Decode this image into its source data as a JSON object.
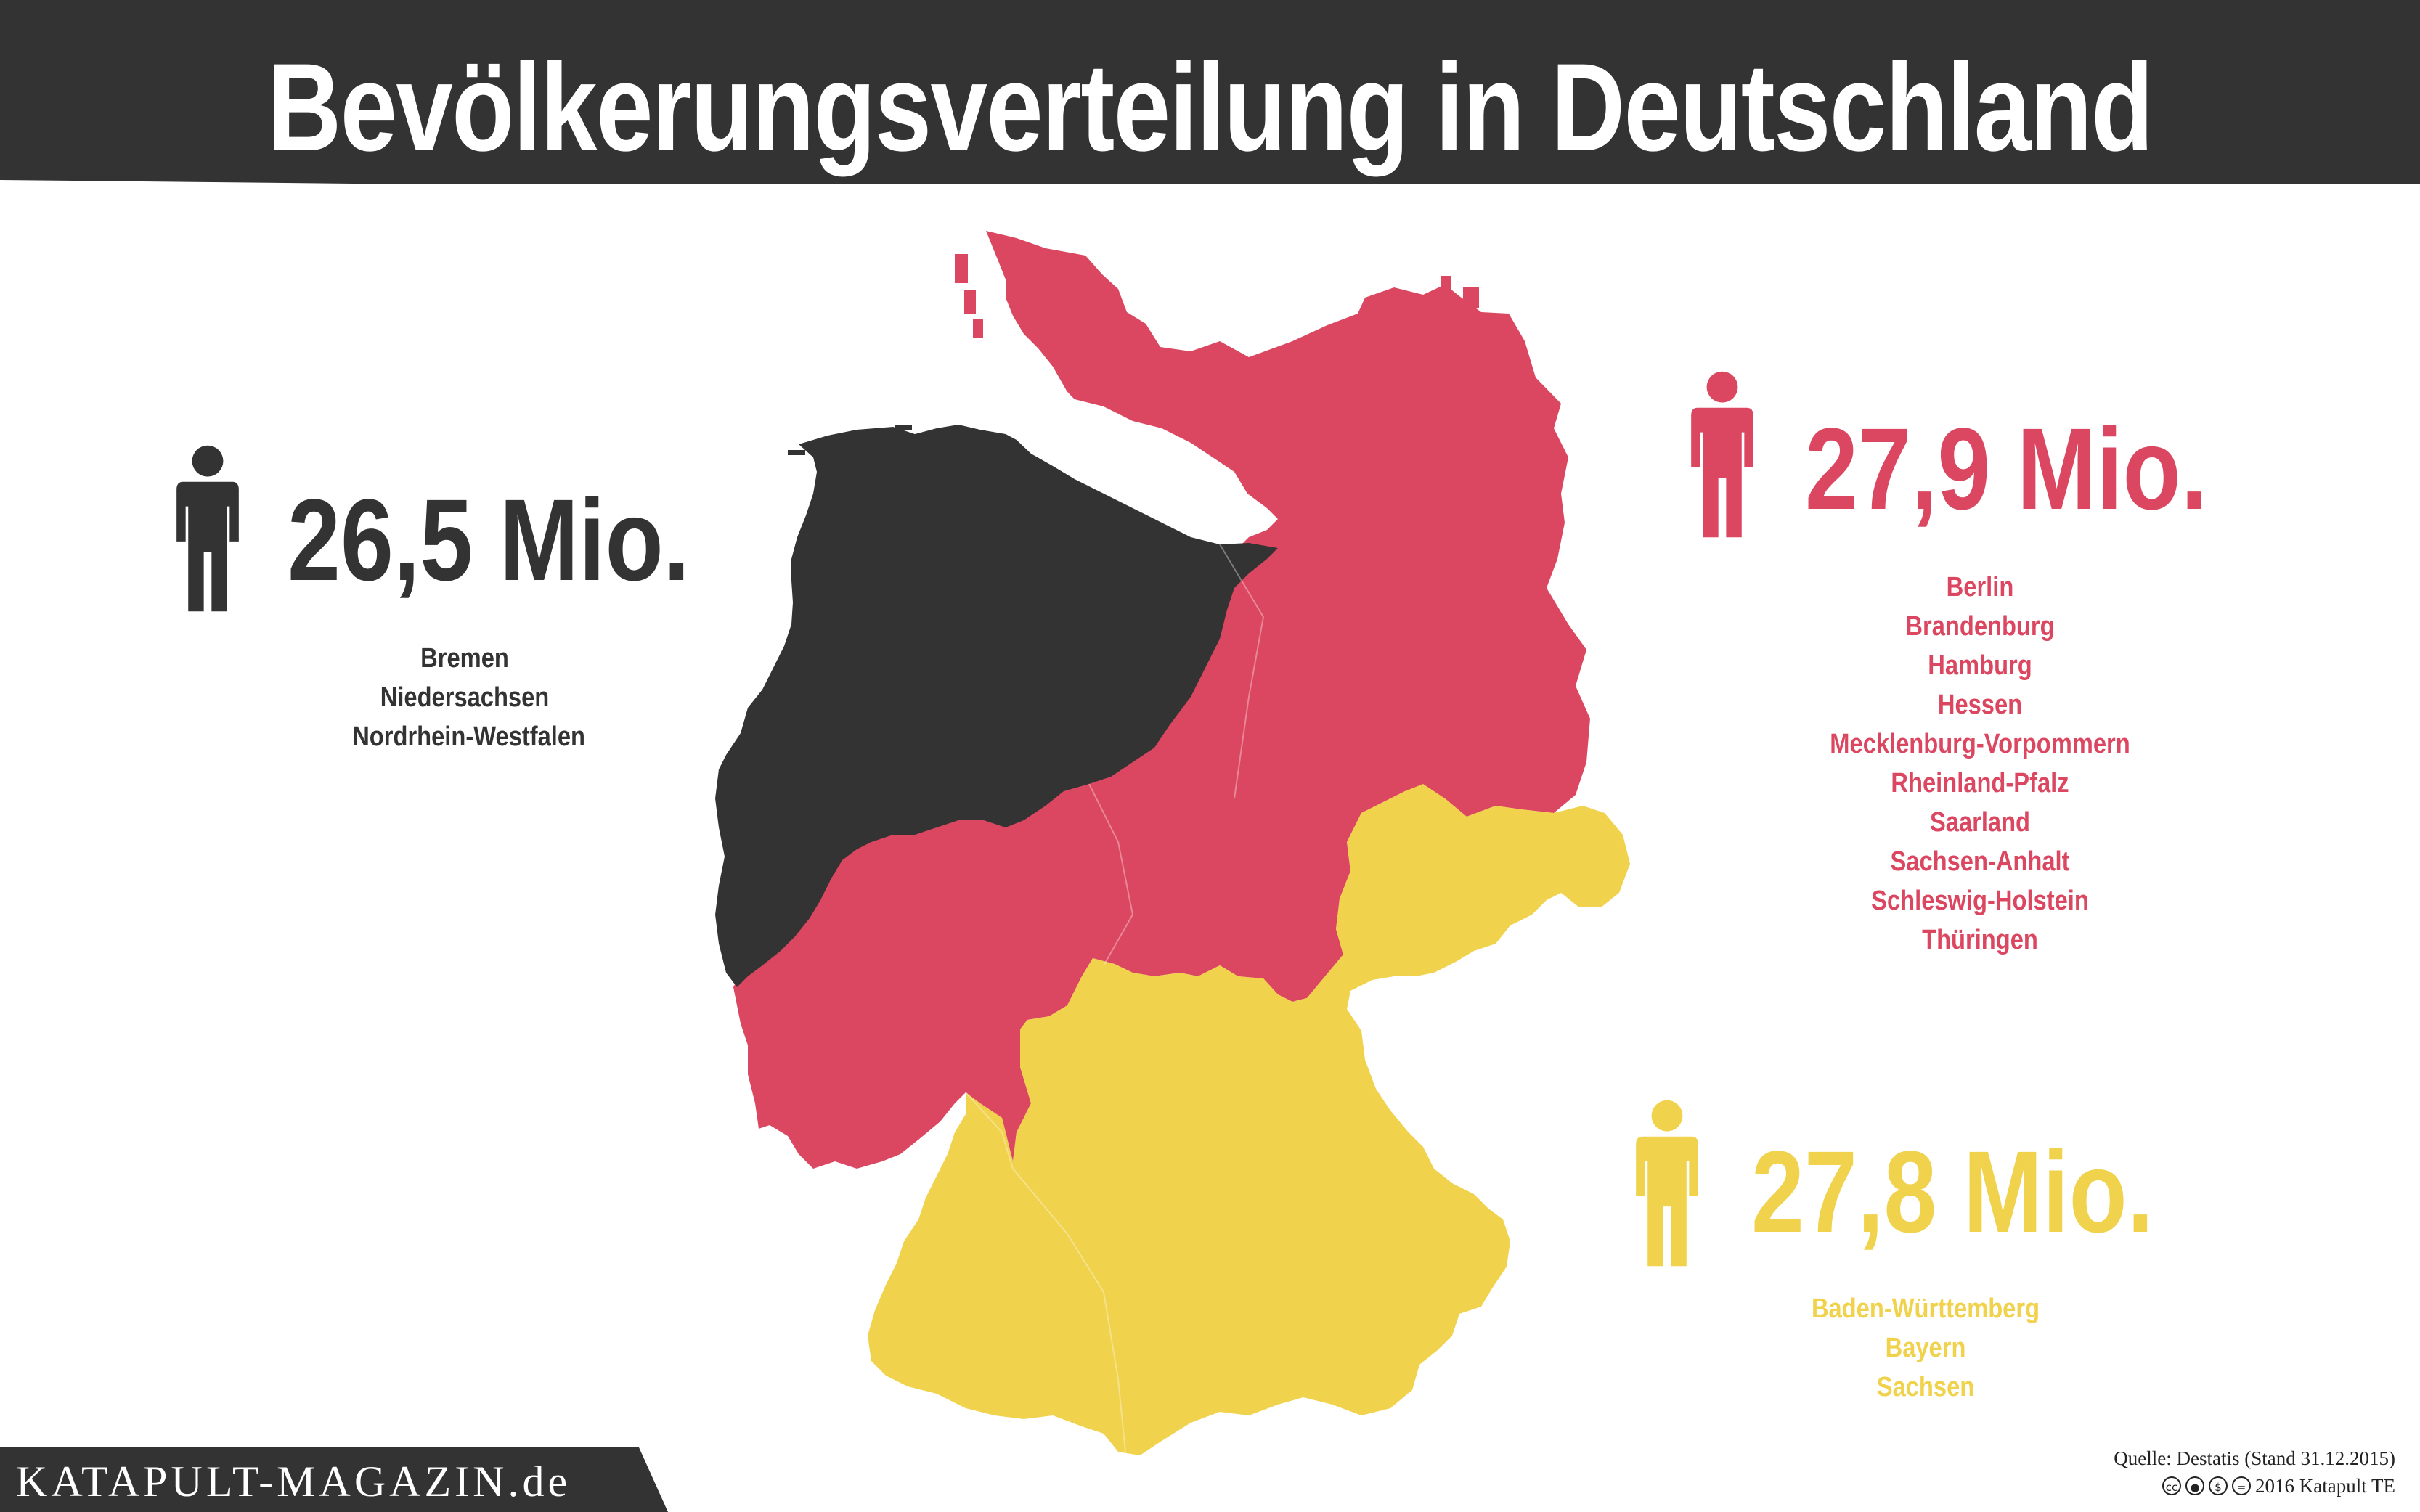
{
  "title": "Bevölkerungsverteilung in Deutschland",
  "colors": {
    "dark": "#333333",
    "red": "#db4760",
    "yellow": "#f0d24c",
    "white": "#ffffff"
  },
  "groups": [
    {
      "id": "west",
      "population": "26,5 Mio.",
      "color": "#333333",
      "states": [
        "Bremen",
        "Niedersachsen",
        "Nordrhein-Westfalen"
      ]
    },
    {
      "id": "north-east",
      "population": "27,9 Mio.",
      "color": "#db4760",
      "states": [
        "Berlin",
        "Brandenburg",
        "Hamburg",
        "Hessen",
        "Mecklenburg-Vorpommern",
        "Rheinland-Pfalz",
        "Saarland",
        "Sachsen-Anhalt",
        "Schleswig-Holstein",
        "Thüringen"
      ]
    },
    {
      "id": "south",
      "population": "27,8 Mio.",
      "color": "#f0d24c",
      "states": [
        "Baden-Württemberg",
        "Bayern",
        "Sachsen"
      ]
    }
  ],
  "footer": {
    "logo": "KATAPULT-MAGAZIN.de",
    "source": "Quelle: Destatis (Stand 31.12.2015)",
    "license": "2016 Katapult TE",
    "license_icons": [
      "cc-icon",
      "by-icon",
      "nc-icon",
      "nd-icon"
    ]
  }
}
